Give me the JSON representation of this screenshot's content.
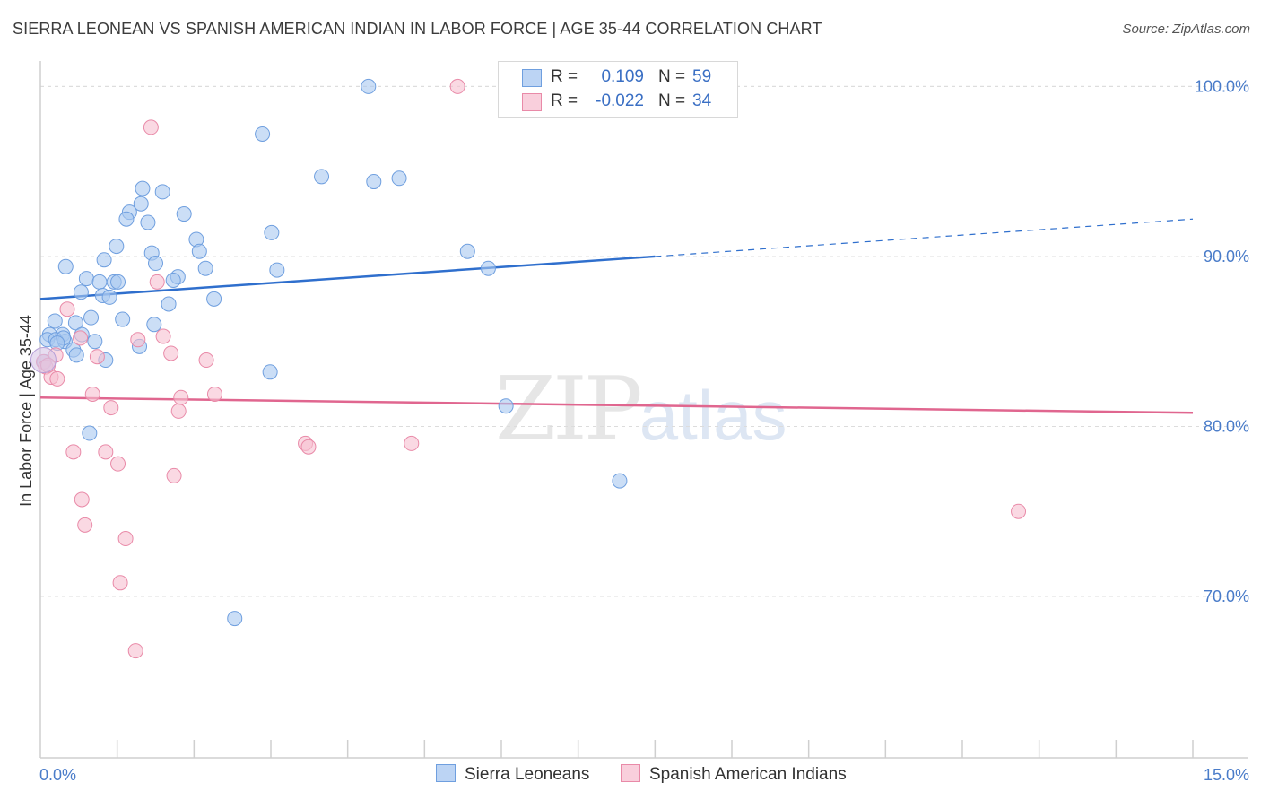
{
  "header": {
    "title": "SIERRA LEONEAN VS SPANISH AMERICAN INDIAN IN LABOR FORCE | AGE 35-44 CORRELATION CHART",
    "source": "Source: ZipAtlas.com"
  },
  "watermark": {
    "zip": "ZIP",
    "atlas": "atlas"
  },
  "legend": {
    "rows": [
      {
        "r_label": "R =",
        "r_value": "0.109",
        "n_label": "N =",
        "n_value": "59"
      },
      {
        "r_label": "R =",
        "r_value": "-0.022",
        "n_label": "N =",
        "n_value": "34"
      }
    ]
  },
  "bottom_legend": {
    "series1": "Sierra Leoneans",
    "series2": "Spanish American Indians"
  },
  "colors": {
    "blue_fill": "#a9c8f0",
    "blue_stroke": "#6f9fdf",
    "blue_line": "#2f6fcd",
    "pink_fill": "#f7bfd0",
    "pink_stroke": "#e98aa8",
    "pink_line": "#e0668f",
    "tick_text": "#4a7cc9"
  },
  "chart_data": {
    "type": "scatter",
    "title": "SIERRA LEONEAN VS SPANISH AMERICAN INDIAN IN LABOR FORCE | AGE 35-44 CORRELATION CHART",
    "xlabel": "",
    "ylabel": "In Labor Force | Age 35-44",
    "xlim": [
      0,
      15
    ],
    "ylim": [
      60.5,
      101.5
    ],
    "x_tick_labels": [
      "0.0%",
      "15.0%"
    ],
    "y_ticks": [
      70,
      80,
      90,
      100
    ],
    "y_tick_labels": [
      "70.0%",
      "80.0%",
      "90.0%",
      "100.0%"
    ],
    "grid": true,
    "series": [
      {
        "name": "Sierra Leoneans",
        "R": 0.109,
        "N": 59,
        "trend": {
          "x_start": 0,
          "y_start": 87.5,
          "x_solid_end": 8.0,
          "y_solid_end": 90.0,
          "x_end": 15,
          "y_end": 92.2
        },
        "points": [
          [
            4.27,
            100.0
          ],
          [
            2.89,
            97.2
          ],
          [
            3.66,
            94.7
          ],
          [
            4.34,
            94.4
          ],
          [
            4.67,
            94.6
          ],
          [
            1.33,
            94.0
          ],
          [
            1.59,
            93.8
          ],
          [
            1.31,
            93.1
          ],
          [
            1.16,
            92.6
          ],
          [
            1.12,
            92.2
          ],
          [
            1.4,
            92.0
          ],
          [
            1.87,
            92.5
          ],
          [
            3.01,
            91.4
          ],
          [
            2.03,
            91.0
          ],
          [
            0.99,
            90.6
          ],
          [
            1.45,
            90.2
          ],
          [
            2.07,
            90.3
          ],
          [
            5.56,
            90.3
          ],
          [
            0.83,
            89.8
          ],
          [
            1.5,
            89.6
          ],
          [
            0.33,
            89.4
          ],
          [
            2.15,
            89.3
          ],
          [
            3.08,
            89.2
          ],
          [
            5.83,
            89.3
          ],
          [
            1.79,
            88.8
          ],
          [
            0.6,
            88.7
          ],
          [
            1.73,
            88.6
          ],
          [
            0.77,
            88.5
          ],
          [
            0.96,
            88.5
          ],
          [
            1.01,
            88.5
          ],
          [
            0.53,
            87.9
          ],
          [
            0.81,
            87.7
          ],
          [
            0.9,
            87.6
          ],
          [
            2.26,
            87.5
          ],
          [
            1.67,
            87.2
          ],
          [
            0.66,
            86.4
          ],
          [
            1.07,
            86.3
          ],
          [
            1.48,
            86.0
          ],
          [
            0.19,
            86.2
          ],
          [
            0.46,
            86.1
          ],
          [
            0.12,
            85.4
          ],
          [
            0.29,
            85.4
          ],
          [
            0.54,
            85.4
          ],
          [
            0.09,
            85.1
          ],
          [
            0.2,
            85.1
          ],
          [
            0.32,
            85.0
          ],
          [
            0.71,
            85.0
          ],
          [
            1.29,
            84.7
          ],
          [
            0.43,
            84.5
          ],
          [
            0.47,
            84.2
          ],
          [
            0.85,
            83.9
          ],
          [
            0.05,
            83.8
          ],
          [
            2.99,
            83.2
          ],
          [
            6.06,
            81.2
          ],
          [
            0.64,
            79.6
          ],
          [
            7.54,
            76.8
          ],
          [
            2.53,
            68.7
          ],
          [
            0.3,
            85.2
          ],
          [
            0.22,
            84.9
          ]
        ]
      },
      {
        "name": "Spanish American Indians",
        "R": -0.022,
        "N": 34,
        "trend": {
          "x_start": 0,
          "y_start": 81.7,
          "x_end": 15,
          "y_end": 80.8
        },
        "points": [
          [
            5.43,
            100.0
          ],
          [
            1.44,
            97.6
          ],
          [
            1.52,
            88.5
          ],
          [
            0.35,
            86.9
          ],
          [
            1.27,
            85.1
          ],
          [
            1.6,
            85.3
          ],
          [
            0.52,
            85.2
          ],
          [
            0.74,
            84.1
          ],
          [
            1.7,
            84.3
          ],
          [
            2.16,
            83.9
          ],
          [
            0.04,
            83.8
          ],
          [
            0.07,
            83.5
          ],
          [
            0.14,
            82.9
          ],
          [
            0.22,
            82.8
          ],
          [
            0.68,
            81.9
          ],
          [
            0.92,
            81.1
          ],
          [
            1.83,
            81.7
          ],
          [
            2.27,
            81.9
          ],
          [
            1.8,
            80.9
          ],
          [
            3.45,
            79.0
          ],
          [
            3.49,
            78.8
          ],
          [
            4.83,
            79.0
          ],
          [
            0.43,
            78.5
          ],
          [
            0.85,
            78.5
          ],
          [
            1.01,
            77.8
          ],
          [
            1.74,
            77.1
          ],
          [
            0.54,
            75.7
          ],
          [
            0.58,
            74.2
          ],
          [
            1.11,
            73.4
          ],
          [
            1.04,
            70.8
          ],
          [
            1.24,
            66.8
          ],
          [
            12.73,
            75.0
          ],
          [
            0.2,
            84.2
          ],
          [
            0.1,
            83.6
          ]
        ]
      }
    ]
  }
}
